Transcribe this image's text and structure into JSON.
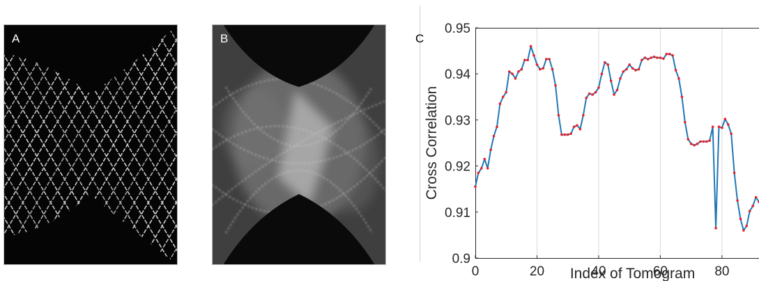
{
  "panels": {
    "a": {
      "label": "A"
    },
    "b": {
      "label": "B"
    },
    "c": {
      "label": "C"
    }
  },
  "colors": {
    "line": "#1f77b4",
    "marker": "#e8202a",
    "grid": "#d9d9d9",
    "axis": "#262626"
  },
  "chart_data": {
    "type": "line",
    "title": "",
    "xlabel": "Index of Tomogram",
    "ylabel": "Cross Correlation",
    "xlim": [
      0,
      92
    ],
    "ylim": [
      0.9,
      0.95
    ],
    "xticks": [
      0,
      20,
      40,
      60,
      80
    ],
    "yticks": [
      0.9,
      0.91,
      0.92,
      0.93,
      0.94,
      0.95
    ],
    "xtick_labels": [
      "0",
      "20",
      "40",
      "60",
      "80"
    ],
    "ytick_labels": [
      "0.9",
      "0.91",
      "0.92",
      "0.93",
      "0.94",
      "0.95"
    ],
    "grid": "vertical",
    "markers": true,
    "series": [
      {
        "x": [
          0,
          1,
          2,
          3,
          4,
          5,
          6,
          7,
          8,
          9,
          10,
          11,
          12,
          13,
          14,
          15,
          16,
          17,
          18,
          19,
          20,
          21,
          22,
          23,
          24,
          25,
          26,
          27,
          28,
          29,
          30,
          31,
          32,
          33,
          34,
          35,
          36,
          37,
          38,
          39,
          40,
          41,
          42,
          43,
          44,
          45,
          46,
          47,
          48,
          49,
          50,
          51,
          52,
          53,
          54,
          55,
          56,
          57,
          58,
          59,
          60,
          61,
          62,
          63,
          64,
          65,
          66,
          67,
          68,
          69,
          70,
          71,
          72,
          73,
          74,
          75,
          76,
          77,
          78,
          79,
          80,
          81,
          82,
          83,
          84,
          85,
          86,
          87,
          88,
          89,
          90,
          91,
          92
        ],
        "y": [
          0.9155,
          0.9185,
          0.9195,
          0.9215,
          0.9195,
          0.9235,
          0.9265,
          0.9285,
          0.9335,
          0.935,
          0.936,
          0.9405,
          0.94,
          0.939,
          0.9405,
          0.941,
          0.943,
          0.943,
          0.946,
          0.944,
          0.942,
          0.941,
          0.9412,
          0.9432,
          0.9432,
          0.941,
          0.9375,
          0.931,
          0.9268,
          0.9268,
          0.9268,
          0.927,
          0.9285,
          0.9288,
          0.928,
          0.931,
          0.9348,
          0.9357,
          0.9355,
          0.936,
          0.937,
          0.94,
          0.9425,
          0.942,
          0.9385,
          0.9355,
          0.9365,
          0.939,
          0.9405,
          0.941,
          0.942,
          0.9412,
          0.9408,
          0.941,
          0.943,
          0.9435,
          0.9432,
          0.9435,
          0.9437,
          0.9435,
          0.9435,
          0.9433,
          0.9443,
          0.9443,
          0.944,
          0.9408,
          0.939,
          0.935,
          0.9295,
          0.9258,
          0.9248,
          0.9245,
          0.9248,
          0.9253,
          0.9253,
          0.9253,
          0.9255,
          0.9285,
          0.9065,
          0.9285,
          0.9283,
          0.9302,
          0.929,
          0.927,
          0.9185,
          0.9125,
          0.9085,
          0.906,
          0.907,
          0.9102,
          0.9113,
          0.9132,
          0.9122
        ]
      }
    ]
  }
}
